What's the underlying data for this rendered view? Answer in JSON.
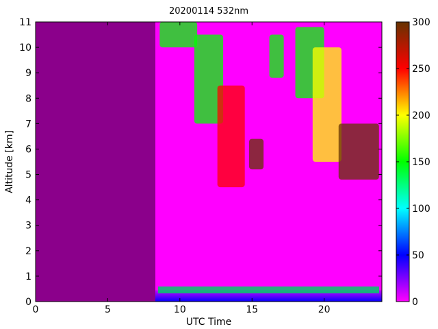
{
  "chart_data": {
    "type": "heatmap",
    "title": "20200114 532nm",
    "xlabel": "UTC Time",
    "ylabel": "Altitude [km]",
    "xlim": [
      0,
      24
    ],
    "ylim": [
      0,
      11
    ],
    "xticks": [
      0,
      5,
      10,
      15,
      20
    ],
    "yticks": [
      0,
      1,
      2,
      3,
      4,
      5,
      6,
      7,
      8,
      9,
      10,
      11
    ],
    "colorbar": {
      "range": [
        0,
        300
      ],
      "ticks": [
        0,
        50,
        100,
        150,
        200,
        250,
        300
      ],
      "colors": [
        "#ff00ff",
        "#0000ff",
        "#00ffff",
        "#00ff00",
        "#ffff00",
        "#ff0000",
        "#663300"
      ]
    },
    "no_data_color": "#8b008b",
    "data_start_time": 8.3,
    "boundary_layer_top_km": 0.45,
    "cloud_regions": [
      {
        "t0": 8.6,
        "t1": 11.2,
        "z0": 10.0,
        "z1": 11.0,
        "value": 160
      },
      {
        "t0": 11.0,
        "t1": 13.0,
        "z0": 7.0,
        "z1": 10.5,
        "value": 170
      },
      {
        "t0": 12.6,
        "t1": 14.5,
        "z0": 4.5,
        "z1": 8.5,
        "value": 240
      },
      {
        "t0": 14.8,
        "t1": 15.8,
        "z0": 5.2,
        "z1": 6.4,
        "value": 290
      },
      {
        "t0": 16.2,
        "t1": 17.2,
        "z0": 8.8,
        "z1": 10.5,
        "value": 150
      },
      {
        "t0": 18.0,
        "t1": 20.0,
        "z0": 8.0,
        "z1": 10.8,
        "value": 160
      },
      {
        "t0": 19.2,
        "t1": 21.2,
        "z0": 5.5,
        "z1": 10.0,
        "value": 210
      },
      {
        "t0": 21.0,
        "t1": 23.8,
        "z0": 4.8,
        "z1": 7.0,
        "value": 280
      }
    ]
  }
}
